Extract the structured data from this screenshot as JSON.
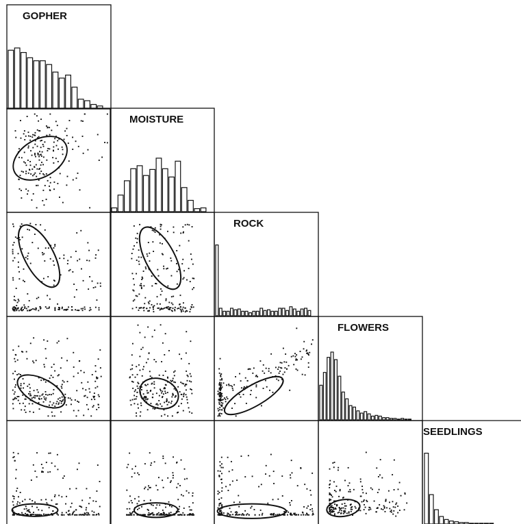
{
  "chart_data": {
    "type": "scatterplot-matrix",
    "variables": [
      "GOPHER",
      "MOISTURE",
      "ROCK",
      "FLOWERS",
      "SEEDLINGS"
    ],
    "diagonal": "histogram",
    "lower_triangle": "scatter with concentration ellipse",
    "grid": false,
    "histograms": {
      "GOPHER": [
        0.77,
        0.8,
        0.74,
        0.67,
        0.63,
        0.63,
        0.58,
        0.48,
        0.4,
        0.44,
        0.28,
        0.12,
        0.1,
        0.05,
        0.03
      ],
      "MOISTURE": [
        0.05,
        0.22,
        0.41,
        0.57,
        0.61,
        0.48,
        0.56,
        0.71,
        0.57,
        0.46,
        0.67,
        0.32,
        0.15,
        0.04,
        0.05
      ],
      "ROCK": [
        0.94,
        0.1,
        0.06,
        0.06,
        0.1,
        0.08,
        0.09,
        0.06,
        0.06,
        0.04,
        0.06,
        0.06,
        0.1,
        0.07,
        0.08,
        0.06,
        0.06,
        0.1,
        0.1,
        0.07,
        0.12,
        0.09,
        0.06,
        0.09,
        0.1,
        0.07
      ],
      "FLOWERS": [
        0.46,
        0.63,
        0.83,
        0.9,
        0.8,
        0.58,
        0.37,
        0.28,
        0.19,
        0.17,
        0.12,
        0.09,
        0.11,
        0.08,
        0.05,
        0.06,
        0.05,
        0.03,
        0.03,
        0.02,
        0.02,
        0.01,
        0.02,
        0.01,
        0.01
      ],
      "SEEDLINGS": [
        0.94,
        0.39,
        0.19,
        0.1,
        0.06,
        0.04,
        0.03,
        0.02,
        0.02,
        0.01,
        0.01,
        0.01,
        0.01,
        0.01
      ]
    },
    "panels": [
      {
        "x": "GOPHER",
        "y": "MOISTURE",
        "ellipse": {
          "cx": 0.32,
          "cy": 0.48,
          "rx": 0.28,
          "ry": 0.18,
          "angle": -30
        }
      },
      {
        "x": "GOPHER",
        "y": "ROCK",
        "ellipse": {
          "cx": 0.31,
          "cy": 0.42,
          "rx": 0.33,
          "ry": 0.14,
          "angle": 62
        }
      },
      {
        "x": "MOISTURE",
        "y": "ROCK",
        "ellipse": {
          "cx": 0.48,
          "cy": 0.44,
          "rx": 0.33,
          "ry": 0.14,
          "angle": 62
        }
      },
      {
        "x": "GOPHER",
        "y": "FLOWERS",
        "ellipse": {
          "cx": 0.33,
          "cy": 0.72,
          "rx": 0.25,
          "ry": 0.12,
          "angle": 28
        }
      },
      {
        "x": "MOISTURE",
        "y": "FLOWERS",
        "ellipse": {
          "cx": 0.47,
          "cy": 0.74,
          "rx": 0.19,
          "ry": 0.14,
          "angle": 20
        }
      },
      {
        "x": "ROCK",
        "y": "FLOWERS",
        "ellipse": {
          "cx": 0.38,
          "cy": 0.76,
          "rx": 0.32,
          "ry": 0.1,
          "angle": -30
        }
      },
      {
        "x": "GOPHER",
        "y": "SEEDLINGS",
        "ellipse": {
          "cx": 0.27,
          "cy": 0.86,
          "rx": 0.22,
          "ry": 0.06,
          "angle": 0
        }
      },
      {
        "x": "MOISTURE",
        "y": "SEEDLINGS",
        "ellipse": {
          "cx": 0.44,
          "cy": 0.86,
          "rx": 0.21,
          "ry": 0.07,
          "angle": 0
        }
      },
      {
        "x": "ROCK",
        "y": "SEEDLINGS",
        "ellipse": {
          "cx": 0.36,
          "cy": 0.87,
          "rx": 0.33,
          "ry": 0.07,
          "angle": 0
        }
      },
      {
        "x": "FLOWERS",
        "y": "SEEDLINGS",
        "ellipse": {
          "cx": 0.24,
          "cy": 0.84,
          "rx": 0.16,
          "ry": 0.08,
          "angle": -8
        }
      }
    ],
    "colors": {
      "line": "#111111",
      "points": "#111111",
      "background": "#ffffff"
    }
  }
}
